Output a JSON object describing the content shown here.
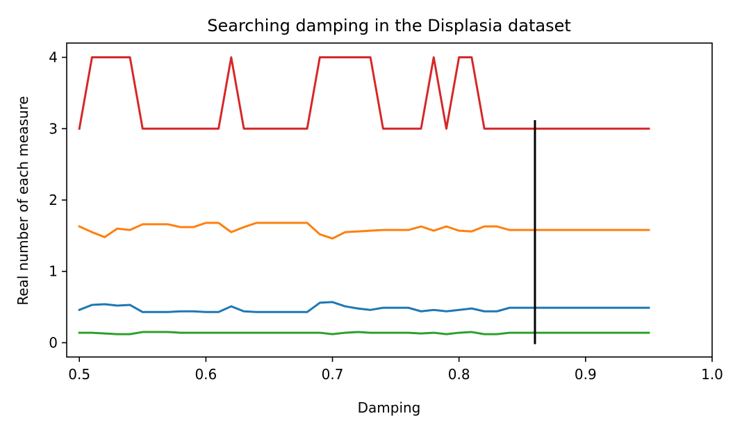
{
  "chart_data": {
    "type": "line",
    "title": "Searching damping in the Displasia dataset",
    "xlabel": "Damping",
    "ylabel": "Real number of each measure",
    "xlim": [
      0.49,
      1.0
    ],
    "ylim": [
      -0.2,
      4.2
    ],
    "xticks": [
      0.5,
      0.6,
      0.7,
      0.8,
      0.9,
      1.0
    ],
    "xtick_labels": [
      "0.5",
      "0.6",
      "0.7",
      "0.8",
      "0.9",
      "1.0"
    ],
    "yticks": [
      0,
      1,
      2,
      3,
      4
    ],
    "ytick_labels": [
      "0",
      "1",
      "2",
      "3",
      "4"
    ],
    "grid": false,
    "x": [
      0.5,
      0.51,
      0.52,
      0.53,
      0.54,
      0.55,
      0.56,
      0.57,
      0.58,
      0.59,
      0.6,
      0.61,
      0.62,
      0.63,
      0.64,
      0.65,
      0.66,
      0.67,
      0.68,
      0.69,
      0.7,
      0.71,
      0.72,
      0.73,
      0.74,
      0.75,
      0.76,
      0.77,
      0.78,
      0.79,
      0.8,
      0.81,
      0.82,
      0.83,
      0.84,
      0.85,
      0.86,
      0.87,
      0.88,
      0.89,
      0.9,
      0.91,
      0.92,
      0.93,
      0.94,
      0.95
    ],
    "series": [
      {
        "color": "#1f77b4",
        "values": [
          0.46,
          0.53,
          0.54,
          0.52,
          0.53,
          0.43,
          0.43,
          0.43,
          0.44,
          0.44,
          0.43,
          0.43,
          0.51,
          0.44,
          0.43,
          0.43,
          0.43,
          0.43,
          0.43,
          0.56,
          0.57,
          0.51,
          0.48,
          0.46,
          0.49,
          0.49,
          0.49,
          0.44,
          0.46,
          0.44,
          0.46,
          0.48,
          0.44,
          0.44,
          0.49,
          0.49,
          0.49,
          0.49,
          0.49,
          0.49,
          0.49,
          0.49,
          0.49,
          0.49,
          0.49,
          0.49
        ]
      },
      {
        "color": "#ff7f0e",
        "values": [
          1.63,
          1.55,
          1.48,
          1.6,
          1.58,
          1.66,
          1.66,
          1.66,
          1.62,
          1.62,
          1.68,
          1.68,
          1.55,
          1.62,
          1.68,
          1.68,
          1.68,
          1.68,
          1.68,
          1.52,
          1.46,
          1.55,
          1.56,
          1.57,
          1.58,
          1.58,
          1.58,
          1.63,
          1.57,
          1.63,
          1.57,
          1.56,
          1.63,
          1.63,
          1.58,
          1.58,
          1.58,
          1.58,
          1.58,
          1.58,
          1.58,
          1.58,
          1.58,
          1.58,
          1.58,
          1.58
        ]
      },
      {
        "color": "#2ca02c",
        "values": [
          0.14,
          0.14,
          0.13,
          0.12,
          0.12,
          0.15,
          0.15,
          0.15,
          0.14,
          0.14,
          0.14,
          0.14,
          0.14,
          0.14,
          0.14,
          0.14,
          0.14,
          0.14,
          0.14,
          0.14,
          0.12,
          0.14,
          0.15,
          0.14,
          0.14,
          0.14,
          0.14,
          0.13,
          0.14,
          0.12,
          0.14,
          0.15,
          0.12,
          0.12,
          0.14,
          0.14,
          0.14,
          0.14,
          0.14,
          0.14,
          0.14,
          0.14,
          0.14,
          0.14,
          0.14,
          0.14
        ]
      },
      {
        "color": "#d62728",
        "values": [
          3,
          4,
          4,
          4,
          4,
          3,
          3,
          3,
          3,
          3,
          3,
          3,
          4,
          3,
          3,
          3,
          3,
          3,
          3,
          4,
          4,
          4,
          4,
          4,
          3,
          3,
          3,
          3,
          4,
          3,
          4,
          4,
          3,
          3,
          3,
          3,
          3,
          3,
          3,
          3,
          3,
          3,
          3,
          3,
          3,
          3
        ]
      }
    ],
    "vline": {
      "x": 0.86,
      "y_from": -0.02,
      "y_to": 3.12,
      "color": "#000000"
    }
  }
}
